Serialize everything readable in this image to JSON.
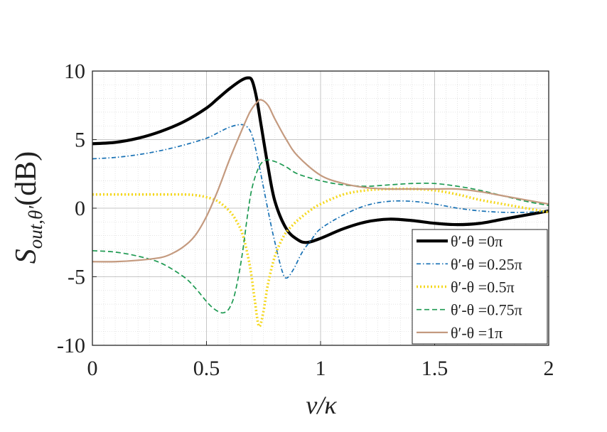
{
  "chart_data": {
    "type": "line",
    "title": "",
    "xlabel": "ν/κ",
    "ylabel": "S_{out,θ'}(dB)",
    "ylabel_parts": {
      "main": "S",
      "sub": "out,θ′",
      "unit": "(dB)"
    },
    "xlim": [
      0,
      2
    ],
    "ylim": [
      -10,
      10
    ],
    "xticks": [
      0,
      0.5,
      1,
      1.5,
      2
    ],
    "yticks": [
      -10,
      -5,
      0,
      5,
      10
    ],
    "xtick_labels": [
      "0",
      "0.5",
      "1",
      "1.5",
      "2"
    ],
    "ytick_labels": [
      "-10",
      "-5",
      "0",
      "5",
      "10"
    ],
    "grid": true,
    "minor_grid": true,
    "legend_position": "bottom-right",
    "series": [
      {
        "name": "θ′-θ =0π",
        "color": "#000000",
        "style": "solid",
        "x": [
          0,
          0.1,
          0.2,
          0.3,
          0.4,
          0.5,
          0.55,
          0.6,
          0.65,
          0.68,
          0.7,
          0.72,
          0.74,
          0.77,
          0.8,
          0.85,
          0.9,
          0.94,
          1.0,
          1.1,
          1.2,
          1.3,
          1.4,
          1.5,
          1.6,
          1.7,
          1.8,
          1.9,
          2.0
        ],
        "y": [
          4.7,
          4.8,
          5.1,
          5.6,
          6.3,
          7.3,
          8.0,
          8.7,
          9.3,
          9.5,
          9.3,
          8.0,
          6.0,
          3.0,
          0.5,
          -1.5,
          -2.3,
          -2.5,
          -2.2,
          -1.5,
          -1.0,
          -0.8,
          -0.9,
          -1.1,
          -1.2,
          -1.1,
          -0.8,
          -0.5,
          -0.2
        ]
      },
      {
        "name": "θ′-θ =0.25π",
        "color": "#1670b4",
        "style": "dashdot",
        "x": [
          0,
          0.1,
          0.2,
          0.3,
          0.4,
          0.5,
          0.55,
          0.6,
          0.65,
          0.68,
          0.7,
          0.72,
          0.75,
          0.78,
          0.8,
          0.83,
          0.85,
          0.88,
          0.92,
          0.96,
          1.0,
          1.1,
          1.2,
          1.3,
          1.4,
          1.5,
          1.6,
          1.7,
          1.8,
          1.9,
          2.0
        ],
        "y": [
          3.6,
          3.7,
          3.9,
          4.2,
          4.6,
          5.1,
          5.5,
          5.9,
          6.1,
          5.9,
          5.3,
          4.0,
          1.5,
          -1.0,
          -2.5,
          -4.5,
          -5.1,
          -4.5,
          -3.2,
          -2.3,
          -1.5,
          -0.5,
          0.2,
          0.5,
          0.5,
          0.3,
          0.0,
          -0.2,
          -0.3,
          -0.3,
          -0.2
        ]
      },
      {
        "name": "θ′-θ =0.5π",
        "color": "#f5d81e",
        "style": "dotted",
        "x": [
          0,
          0.1,
          0.2,
          0.3,
          0.4,
          0.45,
          0.5,
          0.55,
          0.6,
          0.63,
          0.66,
          0.69,
          0.71,
          0.73,
          0.75,
          0.77,
          0.8,
          0.84,
          0.88,
          0.92,
          0.96,
          1.0,
          1.1,
          1.2,
          1.3,
          1.4,
          1.5,
          1.6,
          1.7,
          1.8,
          1.9,
          2.0
        ],
        "y": [
          1.0,
          1.0,
          1.0,
          1.0,
          1.0,
          0.95,
          0.8,
          0.5,
          -0.2,
          -0.9,
          -2.0,
          -4.2,
          -6.5,
          -8.6,
          -7.5,
          -5.5,
          -3.5,
          -2.0,
          -1.2,
          -0.6,
          -0.1,
          0.3,
          1.0,
          1.3,
          1.4,
          1.4,
          1.3,
          1.0,
          0.6,
          0.3,
          0.0,
          -0.3
        ]
      },
      {
        "name": "θ′-θ =0.75π",
        "color": "#1e9a52",
        "style": "dashed",
        "x": [
          0,
          0.1,
          0.2,
          0.3,
          0.4,
          0.45,
          0.5,
          0.53,
          0.56,
          0.58,
          0.6,
          0.62,
          0.64,
          0.66,
          0.68,
          0.7,
          0.73,
          0.76,
          0.8,
          0.85,
          0.9,
          1.0,
          1.1,
          1.2,
          1.3,
          1.4,
          1.5,
          1.6,
          1.7,
          1.8,
          1.9,
          2.0
        ],
        "y": [
          -3.1,
          -3.2,
          -3.5,
          -4.0,
          -5.0,
          -5.8,
          -6.8,
          -7.3,
          -7.6,
          -7.6,
          -7.3,
          -6.5,
          -5.0,
          -3.0,
          -0.5,
          1.5,
          3.0,
          3.5,
          3.4,
          3.0,
          2.5,
          2.0,
          1.7,
          1.6,
          1.7,
          1.8,
          1.8,
          1.6,
          1.3,
          0.9,
          0.5,
          0.2
        ]
      },
      {
        "name": "θ′-θ =1π",
        "color": "#c49a7f",
        "style": "solid",
        "x": [
          0,
          0.1,
          0.2,
          0.3,
          0.35,
          0.4,
          0.45,
          0.5,
          0.55,
          0.6,
          0.65,
          0.69,
          0.72,
          0.74,
          0.77,
          0.8,
          0.85,
          0.9,
          1.0,
          1.1,
          1.2,
          1.3,
          1.4,
          1.5,
          1.6,
          1.7,
          1.8,
          1.9,
          2.0
        ],
        "y": [
          -3.9,
          -3.9,
          -3.8,
          -3.6,
          -3.3,
          -2.8,
          -2.0,
          -0.6,
          1.3,
          3.5,
          5.5,
          7.0,
          7.7,
          7.9,
          7.5,
          6.5,
          5.0,
          3.8,
          2.4,
          1.8,
          1.5,
          1.4,
          1.4,
          1.4,
          1.4,
          1.2,
          0.9,
          0.6,
          0.3
        ]
      }
    ]
  }
}
